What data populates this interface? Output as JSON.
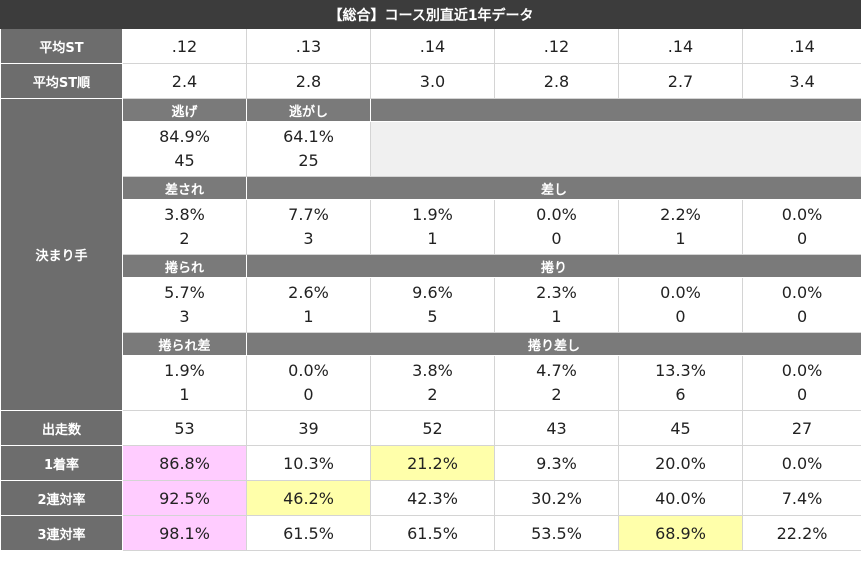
{
  "title": "【総合】コース別直近1年データ",
  "avg_st": {
    "label": "平均ST",
    "values": [
      ".12",
      ".13",
      ".14",
      ".12",
      ".14",
      ".14"
    ]
  },
  "avg_st_rank": {
    "label": "平均ST順",
    "values": [
      "2.4",
      "2.8",
      "3.0",
      "2.8",
      "2.7",
      "3.4"
    ]
  },
  "kimarite": {
    "label": "決まり手",
    "groups": [
      {
        "headers": [
          "逃げ",
          "逃がし"
        ],
        "rates": [
          "84.9%",
          "64.1%"
        ],
        "counts": [
          "45",
          "25"
        ]
      },
      {
        "headers": [
          "差され",
          "差し"
        ],
        "rates": [
          "3.8%",
          "7.7%",
          "1.9%",
          "0.0%",
          "2.2%",
          "0.0%"
        ],
        "counts": [
          "2",
          "3",
          "1",
          "0",
          "1",
          "0"
        ]
      },
      {
        "headers": [
          "捲られ",
          "捲り"
        ],
        "rates": [
          "5.7%",
          "2.6%",
          "9.6%",
          "2.3%",
          "0.0%",
          "0.0%"
        ],
        "counts": [
          "3",
          "1",
          "5",
          "1",
          "0",
          "0"
        ]
      },
      {
        "headers": [
          "捲られ差",
          "捲り差し"
        ],
        "rates": [
          "1.9%",
          "0.0%",
          "3.8%",
          "4.7%",
          "13.3%",
          "0.0%"
        ],
        "counts": [
          "1",
          "0",
          "2",
          "2",
          "6",
          "0"
        ]
      }
    ]
  },
  "starts": {
    "label": "出走数",
    "values": [
      "53",
      "39",
      "52",
      "43",
      "45",
      "27"
    ]
  },
  "win_rate": {
    "label": "1着率",
    "values": [
      "86.8%",
      "10.3%",
      "21.2%",
      "9.3%",
      "20.0%",
      "0.0%"
    ],
    "highlight": [
      "#ffccff",
      null,
      "#ffffaa",
      null,
      null,
      null
    ]
  },
  "top2_rate": {
    "label": "2連対率",
    "values": [
      "92.5%",
      "46.2%",
      "42.3%",
      "30.2%",
      "40.0%",
      "7.4%"
    ],
    "highlight": [
      "#ffccff",
      "#ffffaa",
      null,
      null,
      null,
      null
    ]
  },
  "top3_rate": {
    "label": "3連対率",
    "values": [
      "98.1%",
      "61.5%",
      "61.5%",
      "53.5%",
      "68.9%",
      "22.2%"
    ],
    "highlight": [
      "#ffccff",
      null,
      null,
      null,
      "#ffffaa",
      null
    ]
  }
}
